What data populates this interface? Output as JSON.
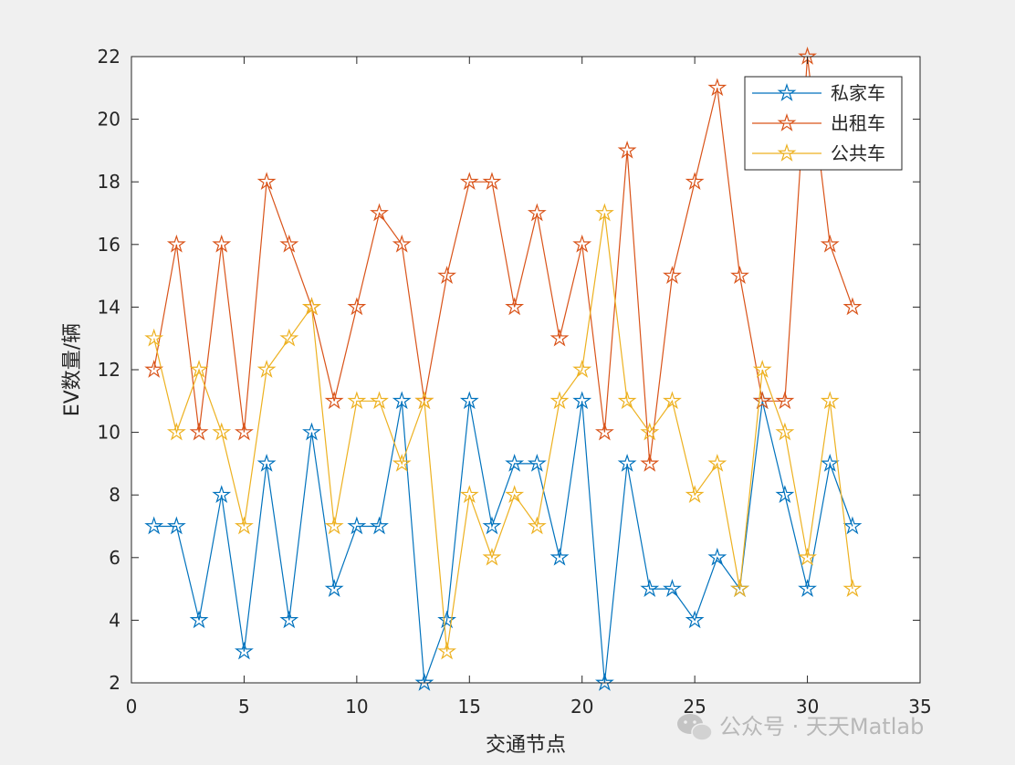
{
  "chart_data": {
    "type": "line",
    "x": [
      1,
      2,
      3,
      4,
      5,
      6,
      7,
      8,
      9,
      10,
      11,
      12,
      13,
      14,
      15,
      16,
      17,
      18,
      19,
      20,
      21,
      22,
      23,
      24,
      25,
      26,
      27,
      28,
      29,
      30,
      31,
      32
    ],
    "series": [
      {
        "name": "私家车",
        "color": "#0072BD",
        "marker": "pentagram",
        "values": [
          7,
          7,
          4,
          8,
          3,
          9,
          4,
          10,
          5,
          7,
          7,
          11,
          2,
          4,
          11,
          7,
          9,
          9,
          6,
          11,
          2,
          9,
          5,
          5,
          4,
          6,
          5,
          11,
          8,
          5,
          9,
          7
        ]
      },
      {
        "name": "出租车",
        "color": "#D95319",
        "marker": "pentagram",
        "values": [
          12,
          16,
          10,
          16,
          10,
          18,
          16,
          14,
          11,
          14,
          17,
          16,
          11,
          15,
          18,
          18,
          14,
          17,
          13,
          16,
          10,
          19,
          9,
          15,
          18,
          21,
          15,
          11,
          11,
          22,
          16,
          14
        ]
      },
      {
        "name": "公共车",
        "color": "#EDB120",
        "marker": "pentagram",
        "values": [
          13,
          10,
          12,
          10,
          7,
          12,
          13,
          14,
          7,
          11,
          11,
          9,
          11,
          3,
          8,
          6,
          8,
          7,
          11,
          12,
          17,
          11,
          10,
          11,
          8,
          9,
          5,
          12,
          10,
          6,
          11,
          5
        ]
      }
    ],
    "xlabel": "交通节点",
    "ylabel": "EV数量/辆",
    "xlim": [
      0,
      35
    ],
    "ylim": [
      2,
      22
    ],
    "xticks": [
      0,
      5,
      10,
      15,
      20,
      25,
      30,
      35
    ],
    "yticks": [
      2,
      4,
      6,
      8,
      10,
      12,
      14,
      16,
      18,
      20,
      22
    ],
    "grid": false,
    "legend_position": "top-right"
  },
  "watermark": {
    "icon": "wechat-icon",
    "text": "公众号 · 天天Matlab"
  }
}
